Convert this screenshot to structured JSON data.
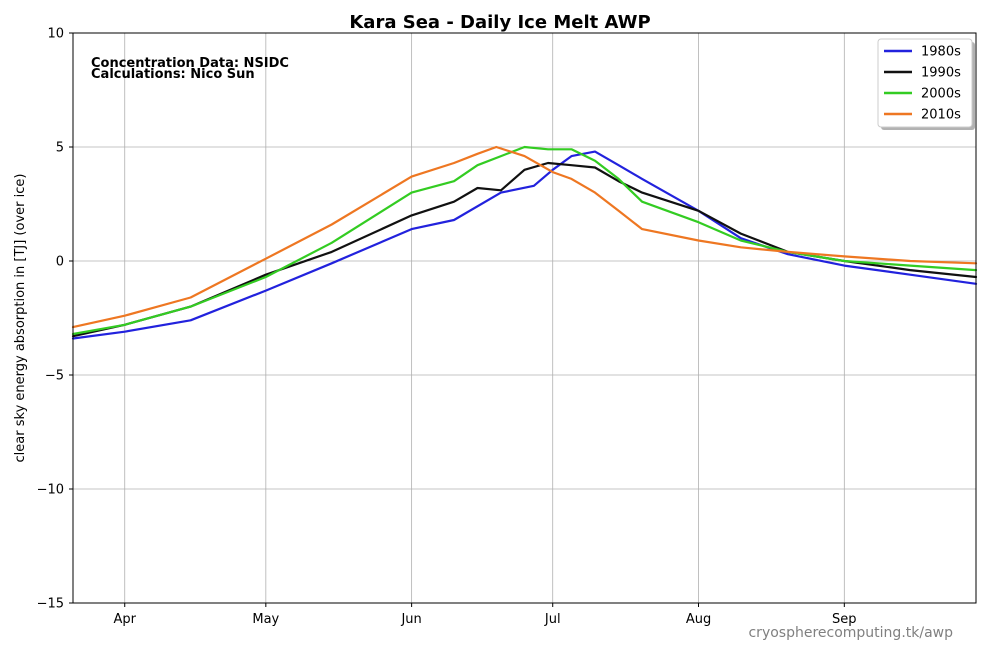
{
  "chart_data": {
    "type": "line",
    "title": "Kara Sea - Daily Ice Melt  AWP",
    "xlabel": "",
    "ylabel": "clear sky energy absorption in  [TJ] (over ice)",
    "ylim": [
      -15,
      10
    ],
    "yticks": [
      10,
      5,
      0,
      -5,
      -10,
      -15
    ],
    "ytick_labels": [
      "10",
      "5",
      "0",
      "−5",
      "−10",
      "−15"
    ],
    "x_range": [
      "03-21",
      "09-29"
    ],
    "xticks": [
      {
        "label": "Apr",
        "date": "04-01"
      },
      {
        "label": "May",
        "date": "05-01"
      },
      {
        "label": "Jun",
        "date": "06-01"
      },
      {
        "label": "Jul",
        "date": "07-01"
      },
      {
        "label": "Aug",
        "date": "08-01"
      },
      {
        "label": "Sep",
        "date": "09-01"
      }
    ],
    "grid": true,
    "legend_position": "top-right",
    "annotations": [
      "Concentration Data: NSIDC",
      "Calculations: Nico Sun"
    ],
    "credit": "cryospherecomputing.tk/awp",
    "series": [
      {
        "name": "1980s",
        "color": "#2222dd",
        "points": [
          [
            "03-21",
            -3.4
          ],
          [
            "04-01",
            -3.1
          ],
          [
            "04-15",
            -2.6
          ],
          [
            "05-01",
            -1.3
          ],
          [
            "05-15",
            -0.1
          ],
          [
            "06-01",
            1.4
          ],
          [
            "06-10",
            1.8
          ],
          [
            "06-20",
            3.0
          ],
          [
            "06-27",
            3.3
          ],
          [
            "07-01",
            4.0
          ],
          [
            "07-05",
            4.6
          ],
          [
            "07-10",
            4.8
          ],
          [
            "07-15",
            4.2
          ],
          [
            "07-20",
            3.6
          ],
          [
            "08-01",
            2.2
          ],
          [
            "08-10",
            1.0
          ],
          [
            "08-20",
            0.3
          ],
          [
            "09-01",
            -0.2
          ],
          [
            "09-15",
            -0.6
          ],
          [
            "09-29",
            -1.0
          ]
        ]
      },
      {
        "name": "1990s",
        "color": "#111111",
        "points": [
          [
            "03-21",
            -3.3
          ],
          [
            "04-01",
            -2.8
          ],
          [
            "04-15",
            -2.0
          ],
          [
            "05-01",
            -0.6
          ],
          [
            "05-15",
            0.4
          ],
          [
            "06-01",
            2.0
          ],
          [
            "06-10",
            2.6
          ],
          [
            "06-15",
            3.2
          ],
          [
            "06-20",
            3.1
          ],
          [
            "06-25",
            4.0
          ],
          [
            "06-30",
            4.3
          ],
          [
            "07-05",
            4.2
          ],
          [
            "07-10",
            4.1
          ],
          [
            "07-15",
            3.5
          ],
          [
            "07-20",
            3.0
          ],
          [
            "08-01",
            2.2
          ],
          [
            "08-10",
            1.2
          ],
          [
            "08-20",
            0.4
          ],
          [
            "09-01",
            0.0
          ],
          [
            "09-15",
            -0.4
          ],
          [
            "09-29",
            -0.7
          ]
        ]
      },
      {
        "name": "2000s",
        "color": "#33cc22",
        "points": [
          [
            "03-21",
            -3.2
          ],
          [
            "04-01",
            -2.8
          ],
          [
            "04-15",
            -2.0
          ],
          [
            "05-01",
            -0.7
          ],
          [
            "05-15",
            0.8
          ],
          [
            "06-01",
            3.0
          ],
          [
            "06-10",
            3.5
          ],
          [
            "06-15",
            4.2
          ],
          [
            "06-20",
            4.6
          ],
          [
            "06-25",
            5.0
          ],
          [
            "06-30",
            4.9
          ],
          [
            "07-05",
            4.9
          ],
          [
            "07-10",
            4.4
          ],
          [
            "07-15",
            3.6
          ],
          [
            "07-20",
            2.6
          ],
          [
            "08-01",
            1.7
          ],
          [
            "08-10",
            0.9
          ],
          [
            "08-20",
            0.4
          ],
          [
            "09-01",
            0.0
          ],
          [
            "09-15",
            -0.2
          ],
          [
            "09-29",
            -0.4
          ]
        ]
      },
      {
        "name": "2010s",
        "color": "#ee7722",
        "points": [
          [
            "03-21",
            -2.9
          ],
          [
            "04-01",
            -2.4
          ],
          [
            "04-15",
            -1.6
          ],
          [
            "05-01",
            0.1
          ],
          [
            "05-15",
            1.6
          ],
          [
            "06-01",
            3.7
          ],
          [
            "06-10",
            4.3
          ],
          [
            "06-15",
            4.7
          ],
          [
            "06-19",
            5.0
          ],
          [
            "06-25",
            4.6
          ],
          [
            "07-01",
            3.9
          ],
          [
            "07-05",
            3.6
          ],
          [
            "07-10",
            3.0
          ],
          [
            "07-15",
            2.2
          ],
          [
            "07-20",
            1.4
          ],
          [
            "08-01",
            0.9
          ],
          [
            "08-10",
            0.6
          ],
          [
            "08-20",
            0.4
          ],
          [
            "09-01",
            0.2
          ],
          [
            "09-15",
            0.0
          ],
          [
            "09-29",
            -0.1
          ]
        ]
      }
    ]
  }
}
